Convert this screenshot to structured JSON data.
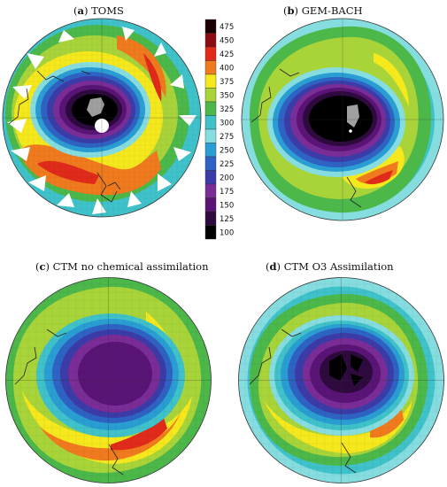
{
  "panels": [
    {
      "letter": "a",
      "title": "TOMS"
    },
    {
      "letter": "b",
      "title": "GEM-BACH"
    },
    {
      "letter": "c",
      "title": "CTM no chemical assimilation"
    },
    {
      "letter": "d",
      "title": "CTM O3 Assimilation"
    }
  ],
  "colorbar": {
    "labels": [
      "475",
      "450",
      "425",
      "400",
      "375",
      "350",
      "325",
      "300",
      "275",
      "250",
      "225",
      "200",
      "175",
      "150",
      "125",
      "100"
    ],
    "colors": [
      "#1a0000",
      "#8b0c12",
      "#e02a1a",
      "#f07a1e",
      "#f5e81c",
      "#a8d43a",
      "#4cb84a",
      "#3fc2c9",
      "#86dde0",
      "#2a9ed3",
      "#2e63c4",
      "#3b3ca8",
      "#7a2d96",
      "#5a1476",
      "#2e0a3e",
      "#000000"
    ]
  },
  "palette": {
    "hole_core": "#000000",
    "hole_dark": "#2e0a3e",
    "hole_purple": "#5a1476",
    "violet": "#7a2d96",
    "indigo": "#3b3ca8",
    "blue": "#2e63c4",
    "cyan": "#3fc2c9",
    "light_cyan": "#86dde0",
    "green": "#4cb84a",
    "yellow_green": "#a8d43a",
    "yellow": "#f5e81c",
    "orange": "#f07a1e",
    "red": "#e02a1a",
    "grey_mask": "#a0a0a0",
    "coast": "#222222"
  }
}
